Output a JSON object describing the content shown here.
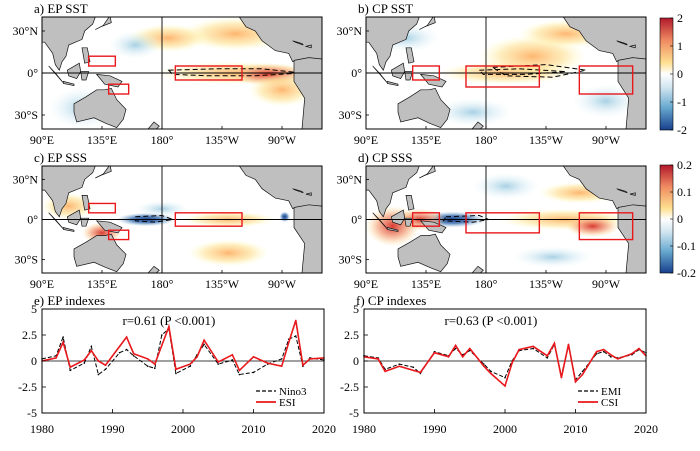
{
  "figure": {
    "maps": [
      {
        "id": "a",
        "title": "a) EP SST",
        "field": "sst",
        "mode": "ep",
        "boxes": [
          "wp",
          "nw_aus",
          "nino34"
        ]
      },
      {
        "id": "b",
        "title": "b) CP SST",
        "field": "sst",
        "mode": "cp",
        "boxes": [
          "emi_west",
          "emi_north",
          "emi_south"
        ]
      },
      {
        "id": "c",
        "title": "c) EP SSS",
        "field": "sss",
        "mode": "ep",
        "boxes": [
          "wp",
          "nw_aus",
          "nino34"
        ]
      },
      {
        "id": "d",
        "title": "d) CP SSS",
        "field": "sss",
        "mode": "cp",
        "boxes": [
          "emi_west",
          "emi_north",
          "emi_south"
        ]
      }
    ],
    "map_axes": {
      "lon_range": [
        90,
        300
      ],
      "lat_range": [
        -40,
        40
      ],
      "x_ticks": [
        {
          "lon": 90,
          "label": "90°E"
        },
        {
          "lon": 135,
          "label": "135°E"
        },
        {
          "lon": 180,
          "label": "180°"
        },
        {
          "lon": 225,
          "label": "135°W"
        },
        {
          "lon": 270,
          "label": "90°W"
        }
      ],
      "y_ticks": [
        {
          "lat": 30,
          "label": "30°N"
        },
        {
          "lat": 0,
          "label": "0°"
        },
        {
          "lat": -30,
          "label": "30°S"
        }
      ]
    },
    "boxes": {
      "wp": {
        "lon": [
          125,
          145
        ],
        "lat": [
          5,
          12
        ]
      },
      "nw_aus": {
        "lon": [
          140,
          155
        ],
        "lat": [
          -15,
          -8
        ]
      },
      "nino34": {
        "lon": [
          190,
          240
        ],
        "lat": [
          -5,
          5
        ]
      },
      "emi_west": {
        "lon": [
          165,
          220
        ],
        "lat": [
          -10,
          5
        ]
      },
      "emi_north": {
        "lon": [
          125,
          145
        ],
        "lat": [
          -5,
          5
        ]
      },
      "emi_south": {
        "lon": [
          250,
          290
        ],
        "lat": [
          -15,
          5
        ]
      }
    },
    "colorbars": [
      {
        "field": "sst",
        "ticks": [
          "2",
          "1",
          "0",
          "-1",
          "-2"
        ]
      },
      {
        "field": "sss",
        "ticks": [
          "0.2",
          "0.1",
          "0",
          "-0.1",
          "-0.2"
        ]
      }
    ],
    "colors": {
      "land": "#bfbfbf",
      "box": "#e8181c",
      "deep_red": "#b2182b",
      "deep_blue": "#173f8c"
    }
  },
  "chart_data": [
    {
      "type": "line",
      "title": "e) EP indexes",
      "annotation": "r=0.61 (P <0.001)",
      "x_range": [
        1980,
        2020
      ],
      "ylim": [
        -5,
        5
      ],
      "x_ticks": [
        "1980",
        "1990",
        "2000",
        "2010",
        "2020"
      ],
      "y_ticks": [
        "5",
        "2.5",
        "0",
        "-2.5",
        "-5"
      ],
      "x": [
        1980,
        1982,
        1983,
        1984,
        1986,
        1987,
        1988,
        1989,
        1991,
        1992,
        1993,
        1995,
        1996,
        1997,
        1998,
        1999,
        2001,
        2002,
        2003,
        2005,
        2007,
        2008,
        2010,
        2012,
        2014,
        2015,
        2016,
        2017,
        2018,
        2020
      ],
      "series": [
        {
          "name": "Nino3",
          "style": "dashed",
          "color": "#000000",
          "values": [
            0.2,
            0.5,
            2.3,
            -0.9,
            -0.2,
            1.4,
            -1.3,
            -0.8,
            0.8,
            1.1,
            0.5,
            -0.5,
            -0.7,
            2.5,
            3.1,
            -1.2,
            -0.5,
            0.6,
            1.6,
            -0.3,
            0.1,
            -1.3,
            -1.1,
            -0.3,
            0.2,
            2.1,
            2.4,
            -0.5,
            0.3,
            0.1
          ]
        },
        {
          "name": "ESI",
          "style": "solid",
          "color": "#e8181c",
          "values": [
            0.0,
            0.3,
            1.8,
            -0.6,
            0.1,
            1.0,
            0.0,
            -0.4,
            1.4,
            2.3,
            0.7,
            0.2,
            -0.3,
            1.5,
            3.3,
            -0.8,
            -0.3,
            0.4,
            2.0,
            -0.1,
            0.6,
            -0.9,
            0.4,
            -0.2,
            -0.5,
            1.8,
            3.9,
            -0.4,
            0.2,
            0.3
          ]
        }
      ]
    },
    {
      "type": "line",
      "title": "f) CP indexes",
      "annotation": "r=0.63 (P <0.001)",
      "x_range": [
        1980,
        2020
      ],
      "ylim": [
        -5,
        5
      ],
      "x_ticks": [
        "1980",
        "1990",
        "2000",
        "2010",
        "2020"
      ],
      "y_ticks": [
        "5",
        "2.5",
        "0",
        "-2.5",
        "-5"
      ],
      "x": [
        1980,
        1982,
        1983,
        1985,
        1987,
        1988,
        1990,
        1992,
        1993,
        1994,
        1995,
        1997,
        1998,
        2000,
        2001,
        2002,
        2004,
        2006,
        2007,
        2008,
        2009,
        2010,
        2011,
        2013,
        2014,
        2015,
        2016,
        2018,
        2019,
        2020
      ],
      "series": [
        {
          "name": "EMI",
          "style": "dashed",
          "color": "#000000",
          "values": [
            0.5,
            0.3,
            -0.8,
            -0.3,
            -0.6,
            -1.2,
            0.9,
            0.5,
            1.2,
            0.6,
            1.0,
            -0.3,
            -1.0,
            -1.6,
            0.0,
            1.0,
            1.2,
            0.3,
            1.6,
            -1.4,
            1.5,
            -1.8,
            -1.0,
            0.7,
            0.9,
            0.4,
            0.3,
            0.6,
            1.1,
            0.8
          ]
        },
        {
          "name": "CSI",
          "style": "solid",
          "color": "#e8181c",
          "values": [
            0.4,
            0.2,
            -1.0,
            -0.5,
            -0.9,
            -1.1,
            0.8,
            0.4,
            1.5,
            0.4,
            1.2,
            -0.5,
            -1.2,
            -2.4,
            -0.2,
            1.1,
            1.4,
            0.5,
            1.7,
            -1.6,
            1.6,
            -2.0,
            -1.3,
            0.9,
            1.1,
            0.6,
            0.2,
            0.7,
            1.2,
            0.5
          ]
        }
      ]
    }
  ]
}
